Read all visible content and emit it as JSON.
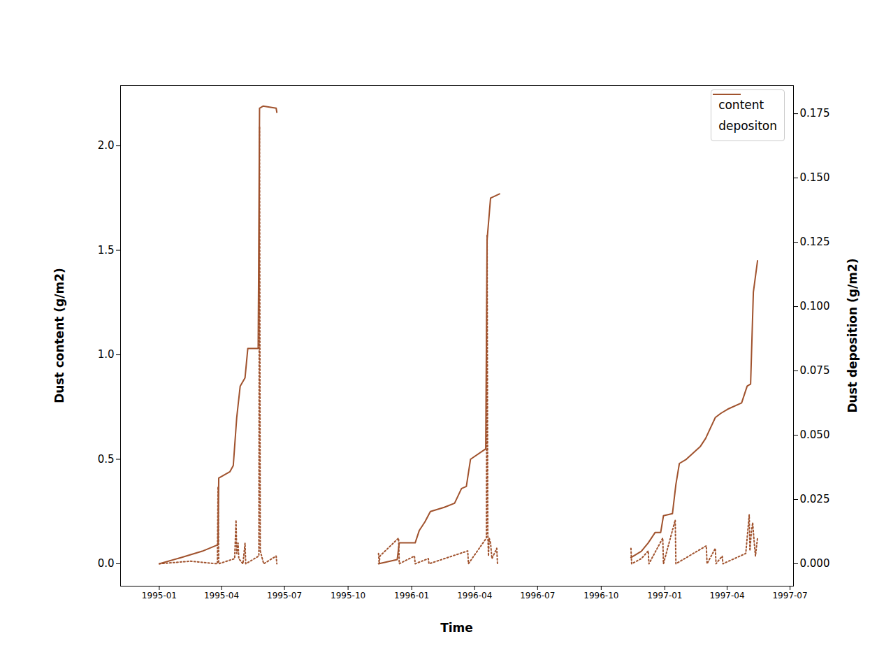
{
  "chart_data": {
    "type": "line",
    "x_label": "Time",
    "y_label": "Dust content (g/m2)",
    "y2_label": "Dust deposition (g/m2)",
    "xlim": [
      "1994-11-06",
      "1997-07-06"
    ],
    "xticks": [
      "1995-01",
      "1995-04",
      "1995-07",
      "1995-10",
      "1996-01",
      "1996-04",
      "1996-07",
      "1996-10",
      "1997-01",
      "1997-04",
      "1997-07"
    ],
    "ylim": [
      -0.107,
      2.288
    ],
    "yticks": [
      {
        "value": 0,
        "label": "0.0"
      },
      0.5,
      {
        "value": 1,
        "label": "1.0"
      },
      1.5,
      {
        "value": 2,
        "label": "2.0"
      }
    ],
    "y2lim": [
      -0.0087,
      0.1859
    ],
    "y2ticks": [
      {
        "value": 0,
        "label": "0.000"
      },
      0.025,
      {
        "value": 0.05,
        "label": "0.050"
      },
      0.075,
      {
        "value": 0.1,
        "label": "0.100"
      },
      0.125,
      {
        "value": 0.15,
        "label": "0.150"
      },
      0.175
    ],
    "grid": false,
    "legend": "upper right",
    "series": [
      {
        "name": "content",
        "color": "#a0522d",
        "line_style": "solid",
        "x": [
          "1995-01-01",
          "1995-02-02",
          "1995-03-04",
          "1995-03-26",
          "1995-03-27",
          "1995-03-28",
          "1995-04-13",
          "1995-04-18",
          "1995-04-23",
          "1995-04-28",
          "1995-05-05",
          "1995-05-09",
          "1995-05-24",
          "1995-05-26",
          "1995-05-31",
          "1995-06-19",
          "1995-06-20",
          "1995-09-01",
          "1995-11-14",
          "1995-12-11",
          "1995-12-14",
          "1996-01-06",
          "1996-01-12",
          "1996-01-20",
          "1996-01-28",
          "1996-02-17",
          "1996-03-03",
          "1996-03-13",
          "1996-03-20",
          "1996-03-26",
          "1996-04-17",
          "1996-04-19",
          "1996-04-24",
          "1996-05-07",
          "1996-08-01",
          "1996-11-13",
          "1996-11-28",
          "1996-12-08",
          "1996-12-18",
          "1996-12-26",
          "1996-12-30",
          "1997-01-12",
          "1997-01-17",
          "1997-01-22",
          "1997-02-01",
          "1997-02-11",
          "1997-02-21",
          "1997-03-01",
          "1997-03-08",
          "1997-03-15",
          "1997-03-23",
          "1997-04-02",
          "1997-04-22",
          "1997-04-30",
          "1997-05-05",
          "1997-05-09",
          "1997-05-15"
        ],
        "values": [
          0.0,
          0.03,
          0.06,
          0.09,
          0.1,
          0.41,
          0.44,
          0.47,
          0.7,
          0.85,
          0.89,
          1.03,
          1.03,
          2.18,
          2.19,
          2.18,
          2.16,
          null,
          0.0,
          0.02,
          0.1,
          0.1,
          0.16,
          0.2,
          0.25,
          0.27,
          0.29,
          0.36,
          0.37,
          0.5,
          0.55,
          1.55,
          1.75,
          1.77,
          null,
          0.03,
          0.06,
          0.1,
          0.15,
          0.15,
          0.23,
          0.24,
          0.38,
          0.48,
          0.5,
          0.53,
          0.56,
          0.6,
          0.65,
          0.7,
          0.72,
          0.74,
          0.77,
          0.85,
          0.86,
          1.3,
          1.45
        ]
      },
      {
        "name": "depositon",
        "color": "#a0522d",
        "line_style": "dotted",
        "axis": "y2",
        "x": [
          "1995-01-01",
          "1995-02-15",
          "1995-03-26",
          "1995-03-27",
          "1995-03-28",
          "1995-04-20",
          "1995-04-22",
          "1995-04-23",
          "1995-04-25",
          "1995-04-26",
          "1995-05-02",
          "1995-05-05",
          "1995-05-06",
          "1995-05-25",
          "1995-05-26",
          "1995-05-27",
          "1995-05-29",
          "1995-06-01",
          "1995-06-19",
          "1995-06-20",
          "1995-09-01",
          "1995-11-14",
          "1995-11-15",
          "1995-11-16",
          "1995-12-13",
          "1995-12-14",
          "1996-01-05",
          "1996-01-06",
          "1996-01-25",
          "1996-01-26",
          "1996-03-22",
          "1996-03-23",
          "1996-04-18",
          "1996-04-19",
          "1996-04-20",
          "1996-04-21",
          "1996-04-22",
          "1996-04-24",
          "1996-04-26",
          "1996-05-03",
          "1996-05-04",
          "1996-08-01",
          "1996-11-13",
          "1996-11-14",
          "1996-11-28",
          "1996-12-08",
          "1996-12-09",
          "1996-12-29",
          "1996-12-30",
          "1997-01-16",
          "1997-01-17",
          "1997-03-02",
          "1997-03-03",
          "1997-03-15",
          "1997-03-16",
          "1997-03-25",
          "1997-03-26",
          "1997-04-28",
          "1997-05-03",
          "1997-05-04",
          "1997-05-06",
          "1997-05-08",
          "1997-05-10",
          "1997-05-12",
          "1997-05-15"
        ],
        "values": [
          0,
          0.001,
          0,
          0.03,
          0,
          0.002,
          0.017,
          0.004,
          0.008,
          0.002,
          0,
          0.008,
          0,
          0.003,
          0.17,
          0.005,
          0.003,
          0,
          0.003,
          0,
          null,
          0.004,
          0,
          0.003,
          0.01,
          0,
          0.003,
          0,
          0.002,
          0,
          0.005,
          0,
          0.01,
          0.128,
          0.012,
          0.003,
          0.01,
          0.008,
          0.002,
          0.006,
          0,
          null,
          0.006,
          0,
          0.002,
          0.005,
          0,
          0.01,
          0,
          0.017,
          0,
          0.007,
          0,
          0.006,
          0,
          0.003,
          0,
          0.004,
          0.019,
          0.005,
          0.012,
          0.016,
          0.009,
          0.003,
          0.01
        ]
      }
    ]
  }
}
